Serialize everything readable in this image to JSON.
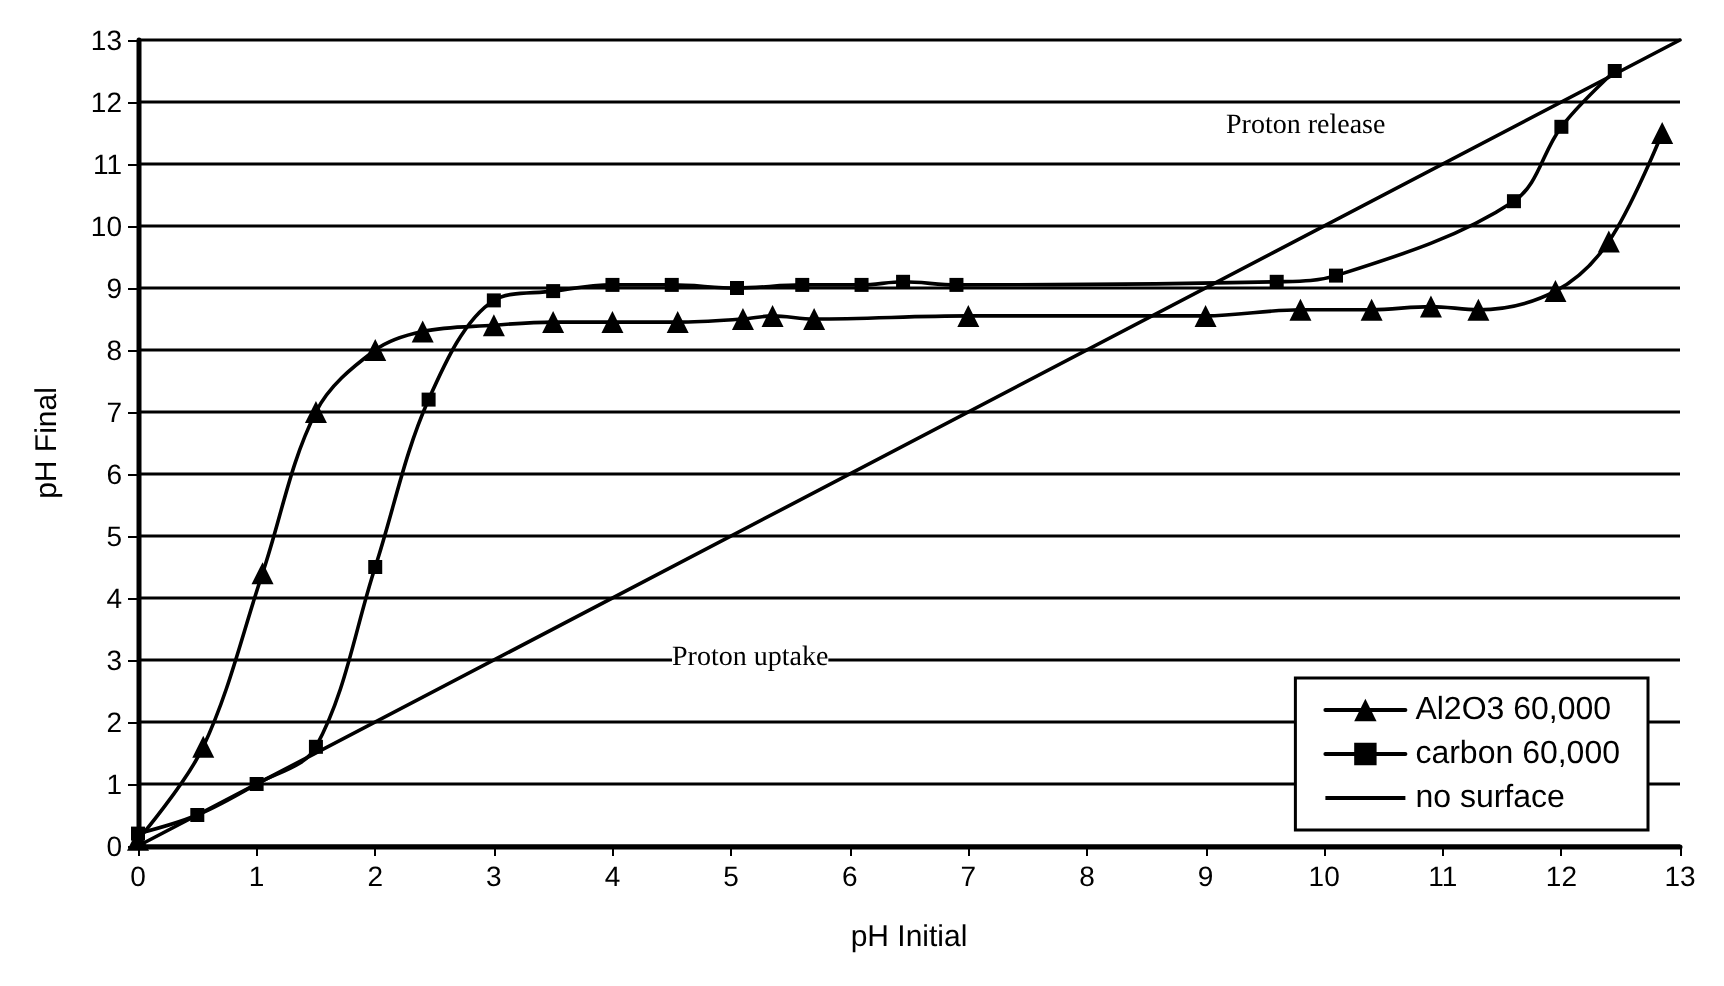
{
  "chart_data": {
    "type": "line",
    "xlabel": "pH Initial",
    "ylabel": "pH Final",
    "xlim": [
      0,
      13
    ],
    "xticks": [
      0,
      1,
      2,
      3,
      4,
      5,
      6,
      7,
      8,
      9,
      10,
      11,
      12,
      13
    ],
    "ylim": [
      0,
      13
    ],
    "yticks": [
      0,
      1,
      2,
      3,
      4,
      5,
      6,
      7,
      8,
      9,
      10,
      11,
      12,
      13
    ],
    "grid": "y",
    "legend": "bottom right",
    "series": [
      {
        "name": "Al2O3 60,000",
        "color": "#000000",
        "marker": "triangle",
        "x": [
          0,
          0.55,
          1.05,
          1.5,
          2.0,
          2.4,
          3.0,
          3.5,
          4.0,
          4.55,
          5.1,
          5.35,
          5.7,
          7.0,
          9.0,
          9.8,
          10.4,
          10.9,
          11.3,
          11.95,
          12.4,
          12.85
        ],
        "values": [
          0.1,
          1.6,
          4.4,
          7.0,
          8.0,
          8.3,
          8.4,
          8.45,
          8.45,
          8.45,
          8.5,
          8.55,
          8.5,
          8.55,
          8.55,
          8.65,
          8.65,
          8.7,
          8.65,
          8.95,
          9.75,
          11.5
        ]
      },
      {
        "name": "carbon 60,000",
        "color": "#000000",
        "marker": "square",
        "x": [
          0,
          0.5,
          1.0,
          1.5,
          2.0,
          2.45,
          3.0,
          3.5,
          4.0,
          4.5,
          5.05,
          5.6,
          6.1,
          6.45,
          6.9,
          9.6,
          10.1,
          11.6,
          12.0,
          12.45
        ],
        "values": [
          0.2,
          0.5,
          1.0,
          1.6,
          4.5,
          7.2,
          8.8,
          8.95,
          9.05,
          9.05,
          9.0,
          9.05,
          9.05,
          9.1,
          9.05,
          9.1,
          9.2,
          10.4,
          11.6,
          12.5
        ]
      },
      {
        "name": "no surface",
        "color": "#000000",
        "marker": "none",
        "x": [
          0,
          13
        ],
        "values": [
          0,
          13
        ]
      }
    ],
    "annotations": [
      "Proton release",
      "Proton uptake"
    ]
  }
}
